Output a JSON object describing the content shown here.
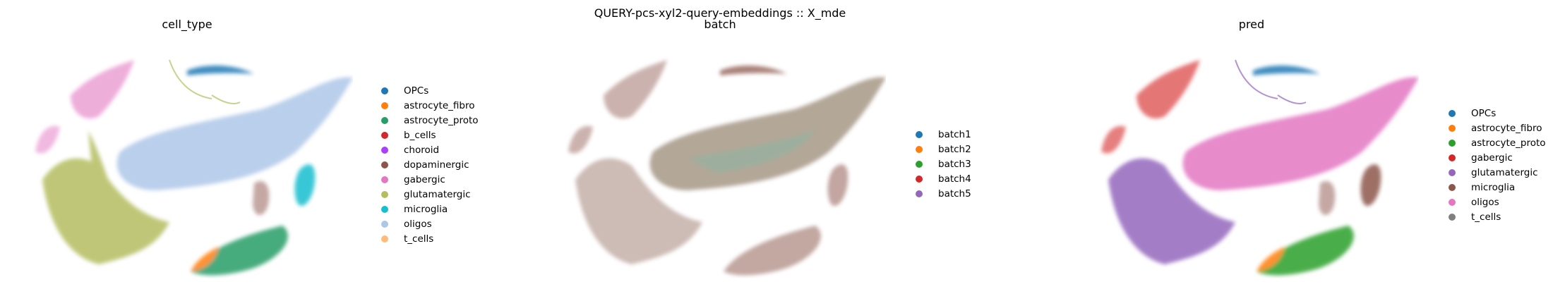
{
  "figure": {
    "suptitle": "QUERY-pcs-xyl2-query-embeddings :: X_mde"
  },
  "chart_data": [
    {
      "type": "scatter",
      "title": "cell_type",
      "legend_placement": "right",
      "grid": false,
      "legend": [
        {
          "label": "OPCs",
          "color": "#1f77b4"
        },
        {
          "label": "astrocyte_fibro",
          "color": "#ff7f0e"
        },
        {
          "label": "astrocyte_proto",
          "color": "#279e68"
        },
        {
          "label": "b_cells",
          "color": "#d62728"
        },
        {
          "label": "choroid",
          "color": "#aa40fc"
        },
        {
          "label": "dopaminergic",
          "color": "#8c564b"
        },
        {
          "label": "gabergic",
          "color": "#e377c2"
        },
        {
          "label": "glutamatergic",
          "color": "#b5bd61"
        },
        {
          "label": "microglia",
          "color": "#17becf"
        },
        {
          "label": "oligos",
          "color": "#aec7e8"
        },
        {
          "label": "t_cells",
          "color": "#ffbb78"
        }
      ]
    },
    {
      "type": "scatter",
      "title": "batch",
      "legend_placement": "right",
      "grid": false,
      "legend": [
        {
          "label": "batch1",
          "color": "#1f77b4"
        },
        {
          "label": "batch2",
          "color": "#ff7f0e"
        },
        {
          "label": "batch3",
          "color": "#2ca02c"
        },
        {
          "label": "batch4",
          "color": "#d62728"
        },
        {
          "label": "batch5",
          "color": "#9467bd"
        }
      ]
    },
    {
      "type": "scatter",
      "title": "pred",
      "legend_placement": "right",
      "grid": false,
      "legend": [
        {
          "label": "OPCs",
          "color": "#1f77b4"
        },
        {
          "label": "astrocyte_fibro",
          "color": "#ff7f0e"
        },
        {
          "label": "astrocyte_proto",
          "color": "#2ca02c"
        },
        {
          "label": "gabergic",
          "color": "#d62728"
        },
        {
          "label": "glutamatergic",
          "color": "#9467bd"
        },
        {
          "label": "microglia",
          "color": "#8c564b"
        },
        {
          "label": "oligos",
          "color": "#e377c2"
        },
        {
          "label": "t_cells",
          "color": "#7f7f7f"
        }
      ]
    }
  ]
}
